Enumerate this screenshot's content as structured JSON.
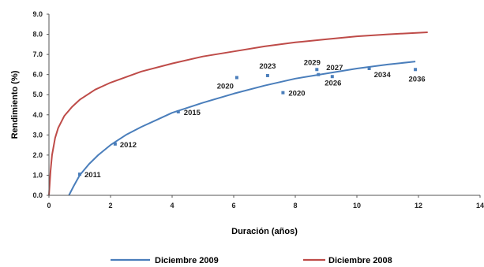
{
  "chart_data": {
    "type": "scatter",
    "title": "",
    "xlabel": "Duración (años)",
    "ylabel": "Rendimiento (%)",
    "xlim": [
      0,
      14
    ],
    "ylim": [
      0,
      9
    ],
    "x_ticks": [
      "0",
      "2",
      "4",
      "6",
      "8",
      "10",
      "12",
      "14"
    ],
    "y_ticks": [
      "0.0",
      "1.0",
      "2.0",
      "3.0",
      "4.0",
      "5.0",
      "6.0",
      "7.0",
      "8.0",
      "9.0"
    ],
    "grid": false,
    "legend_position": "bottom",
    "points": [
      {
        "label": "2011",
        "x": 1.0,
        "y": 1.05
      },
      {
        "label": "2012",
        "x": 2.15,
        "y": 2.55
      },
      {
        "label": "2015",
        "x": 4.2,
        "y": 4.15
      },
      {
        "label": "2020",
        "x": 6.1,
        "y": 5.85
      },
      {
        "label": "2023",
        "x": 7.1,
        "y": 5.95
      },
      {
        "label": "2020",
        "x": 7.6,
        "y": 5.1
      },
      {
        "label": "2029",
        "x": 8.7,
        "y": 6.25
      },
      {
        "label": "2026",
        "x": 8.75,
        "y": 6.0
      },
      {
        "label": "2027",
        "x": 9.2,
        "y": 5.9
      },
      {
        "label": "2034",
        "x": 10.4,
        "y": 6.3
      },
      {
        "label": "2036",
        "x": 11.9,
        "y": 6.25
      }
    ],
    "series": [
      {
        "name": "Diciembre 2009",
        "color": "#4a7ebb",
        "x": [
          0.65,
          0.8,
          1.0,
          1.3,
          1.6,
          2.0,
          2.5,
          3.0,
          3.5,
          4.0,
          4.5,
          5.0,
          6.0,
          7.0,
          8.0,
          9.0,
          10.0,
          11.0,
          11.9
        ],
        "y": [
          0.0,
          0.45,
          1.0,
          1.55,
          2.0,
          2.5,
          3.0,
          3.4,
          3.75,
          4.1,
          4.35,
          4.6,
          5.05,
          5.45,
          5.8,
          6.05,
          6.3,
          6.5,
          6.65
        ]
      },
      {
        "name": "Diciembre 2008",
        "color": "#be4b48",
        "x": [
          0.0,
          0.05,
          0.1,
          0.2,
          0.3,
          0.5,
          0.75,
          1.0,
          1.5,
          2.0,
          3.0,
          4.0,
          5.0,
          6.0,
          7.0,
          8.0,
          9.0,
          10.0,
          11.0,
          12.3
        ],
        "y": [
          0.0,
          1.2,
          2.0,
          2.85,
          3.35,
          3.95,
          4.4,
          4.75,
          5.25,
          5.6,
          6.15,
          6.55,
          6.9,
          7.15,
          7.4,
          7.6,
          7.75,
          7.9,
          8.0,
          8.1
        ]
      }
    ],
    "point_color": "#4a7ebb"
  }
}
